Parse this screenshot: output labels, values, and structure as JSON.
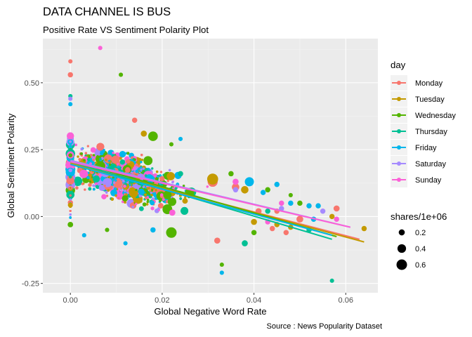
{
  "title": "DATA CHANNEL IS BUS",
  "subtitle": "Positive Rate VS Sentiment Polarity Plot",
  "caption": "Source : News Popularity Dataset",
  "chart_data": {
    "type": "scatter",
    "xlabel": "Global Negative Word Rate",
    "ylabel": "Global Sentiment Polarity",
    "xlim": [
      -0.006,
      0.067
    ],
    "ylim": [
      -0.285,
      0.665
    ],
    "x_ticks": [
      0.0,
      0.02,
      0.04,
      0.06
    ],
    "x_tick_labels": [
      "0.00",
      "0.02",
      "0.04",
      "0.06"
    ],
    "y_ticks": [
      -0.25,
      0.0,
      0.25,
      0.5
    ],
    "y_tick_labels": [
      "-0.25",
      "0.00",
      "0.25",
      "0.50"
    ],
    "grid": true,
    "legend_position": "right",
    "color_legend": {
      "title": "day",
      "entries": [
        {
          "name": "Monday",
          "color": "#F8766D"
        },
        {
          "name": "Tuesday",
          "color": "#C49A00"
        },
        {
          "name": "Wednesday",
          "color": "#53B400"
        },
        {
          "name": "Thursday",
          "color": "#00C094"
        },
        {
          "name": "Friday",
          "color": "#00B6EB"
        },
        {
          "name": "Saturday",
          "color": "#A58AFF"
        },
        {
          "name": "Sunday",
          "color": "#FB61D7"
        }
      ]
    },
    "size_legend": {
      "title": "shares/1e+06",
      "entries": [
        {
          "label": "0.2",
          "value": 0.2
        },
        {
          "label": "0.4",
          "value": 0.4
        },
        {
          "label": "0.6",
          "value": 0.6
        }
      ]
    },
    "trend_lines": [
      {
        "name": "Monday",
        "x": [
          0.0,
          0.063
        ],
        "y": [
          0.195,
          -0.085
        ]
      },
      {
        "name": "Tuesday",
        "x": [
          0.0,
          0.064
        ],
        "y": [
          0.2,
          -0.095
        ]
      },
      {
        "name": "Wednesday",
        "x": [
          0.0,
          0.058
        ],
        "y": [
          0.21,
          -0.075
        ]
      },
      {
        "name": "Thursday",
        "x": [
          0.0,
          0.057
        ],
        "y": [
          0.205,
          -0.085
        ]
      },
      {
        "name": "Friday",
        "x": [
          0.0,
          0.057
        ],
        "y": [
          0.195,
          -0.07
        ]
      },
      {
        "name": "Saturday",
        "x": [
          0.0,
          0.061
        ],
        "y": [
          0.21,
          -0.04
        ]
      },
      {
        "name": "Sunday",
        "x": [
          0.0,
          0.061
        ],
        "y": [
          0.205,
          -0.04
        ]
      }
    ],
    "series": [
      {
        "name": "Monday",
        "points": [
          [
            0.0,
            0.58,
            0.1
          ],
          [
            0.0,
            0.53,
            0.15
          ],
          [
            0.031,
            0.13,
            0.55
          ],
          [
            0.036,
            0.11,
            0.3
          ],
          [
            0.041,
            0.02,
            0.2
          ],
          [
            0.05,
            -0.01,
            0.25
          ],
          [
            0.032,
            -0.09,
            0.2
          ],
          [
            0.044,
            -0.045,
            0.15
          ],
          [
            0.014,
            0.36,
            0.15
          ],
          [
            0.045,
            0.02,
            0.15
          ],
          [
            0.047,
            -0.06,
            0.15
          ],
          [
            0.058,
            0.03,
            0.2
          ]
        ]
      },
      {
        "name": "Tuesday",
        "points": [
          [
            0.031,
            0.14,
            0.65
          ],
          [
            0.038,
            0.1,
            0.3
          ],
          [
            0.04,
            -0.02,
            0.2
          ],
          [
            0.016,
            0.31,
            0.2
          ],
          [
            0.045,
            -0.03,
            0.15
          ],
          [
            0.064,
            -0.045,
            0.15
          ],
          [
            0.057,
            0.0,
            0.15
          ],
          [
            0.048,
            -0.04,
            0.15
          ]
        ]
      },
      {
        "name": "Wednesday",
        "points": [
          [
            0.011,
            0.53,
            0.1
          ],
          [
            0.022,
            0.27,
            0.1
          ],
          [
            0.026,
            0.09,
            0.45
          ],
          [
            0.022,
            -0.06,
            0.6
          ],
          [
            0.008,
            -0.05,
            0.1
          ],
          [
            0.043,
            0.1,
            0.15
          ],
          [
            0.05,
            0.05,
            0.15
          ],
          [
            0.048,
            0.08,
            0.1
          ],
          [
            0.033,
            -0.18,
            0.1
          ],
          [
            0.04,
            -0.06,
            0.15
          ],
          [
            0.035,
            0.16,
            0.15
          ],
          [
            0.018,
            0.3,
            0.5
          ]
        ]
      },
      {
        "name": "Thursday",
        "points": [
          [
            0.0,
            0.45,
            0.1
          ],
          [
            0.038,
            -0.1,
            0.2
          ],
          [
            0.043,
            0.02,
            0.15
          ],
          [
            0.052,
            -0.05,
            0.15
          ],
          [
            0.057,
            -0.24,
            0.1
          ],
          [
            0.024,
            0.16,
            0.15
          ]
        ]
      },
      {
        "name": "Friday",
        "points": [
          [
            0.0,
            0.42,
            0.1
          ],
          [
            0.039,
            0.13,
            0.45
          ],
          [
            0.045,
            0.12,
            0.15
          ],
          [
            0.052,
            0.04,
            0.15
          ],
          [
            0.053,
            -0.01,
            0.15
          ],
          [
            0.018,
            -0.05,
            0.15
          ],
          [
            0.012,
            -0.1,
            0.1
          ],
          [
            0.003,
            -0.07,
            0.1
          ],
          [
            0.054,
            0.04,
            0.15
          ],
          [
            0.024,
            0.29,
            0.1
          ],
          [
            0.033,
            -0.21,
            0.1
          ],
          [
            0.042,
            0.09,
            0.15
          ],
          [
            0.048,
            0.05,
            0.15
          ]
        ]
      },
      {
        "name": "Saturday",
        "points": [
          [
            0.0,
            0.44,
            0.1
          ],
          [
            0.036,
            0.1,
            0.15
          ],
          [
            0.046,
            0.03,
            0.15
          ],
          [
            0.055,
            0.02,
            0.15
          ]
        ]
      },
      {
        "name": "Sunday",
        "points": [
          [
            0.0065,
            0.63,
            0.1
          ],
          [
            0.036,
            0.13,
            0.2
          ],
          [
            0.046,
            0.05,
            0.15
          ],
          [
            0.058,
            -0.01,
            0.15
          ],
          [
            0.043,
            -0.02,
            0.15
          ]
        ]
      }
    ]
  }
}
